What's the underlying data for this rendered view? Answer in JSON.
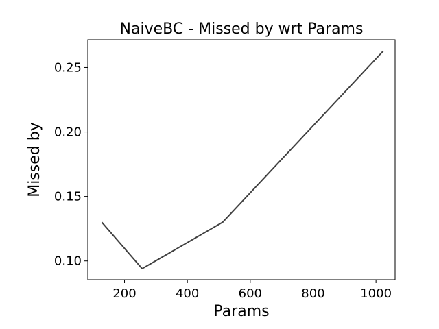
{
  "chart_data": {
    "type": "line",
    "title": "NaiveBC - Missed by wrt Params",
    "xlabel": "Params",
    "ylabel": "Missed by",
    "xlim": [
      83.2,
      1060.8
    ],
    "ylim": [
      0.0855,
      0.2715
    ],
    "xticks": [
      200,
      400,
      600,
      800,
      1000
    ],
    "yticks": [
      0.1,
      0.15,
      0.2,
      0.25
    ],
    "xtick_labels": [
      "200",
      "400",
      "600",
      "800",
      "1000"
    ],
    "ytick_labels": [
      "0.10",
      "0.15",
      "0.20",
      "0.25"
    ],
    "grid": false,
    "legend": "none",
    "series": [
      {
        "color": "#404040",
        "x": [
          128,
          256,
          512,
          1024
        ],
        "y": [
          0.13,
          0.094,
          0.13,
          0.263
        ]
      }
    ]
  }
}
